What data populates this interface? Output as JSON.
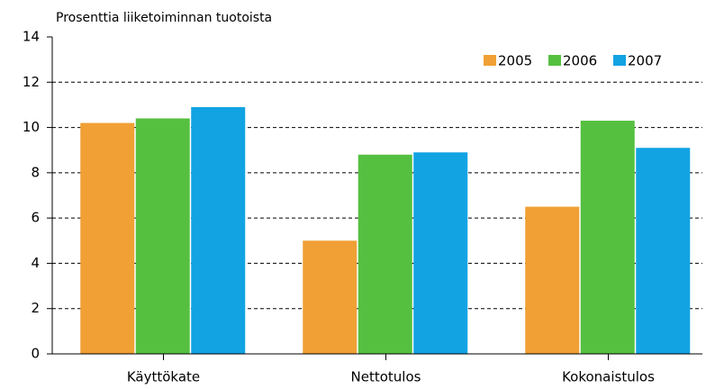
{
  "chart_data": {
    "type": "bar",
    "title": "Prosenttia liiketoiminnan tuotoista",
    "categories": [
      "Käyttökate",
      "Nettotulos",
      "Kokonaistulos"
    ],
    "series": [
      {
        "name": "2005",
        "color": "#f0a035",
        "values": [
          10.2,
          5.0,
          6.5
        ]
      },
      {
        "name": "2006",
        "color": "#55c040",
        "values": [
          10.4,
          8.8,
          10.3
        ]
      },
      {
        "name": "2007",
        "color": "#12a3e3",
        "values": [
          10.9,
          8.9,
          9.1
        ]
      }
    ],
    "ylim": [
      0,
      14
    ],
    "yticks": [
      0,
      2,
      4,
      6,
      8,
      10,
      12,
      14
    ],
    "grid": true,
    "legend": "top-right"
  }
}
